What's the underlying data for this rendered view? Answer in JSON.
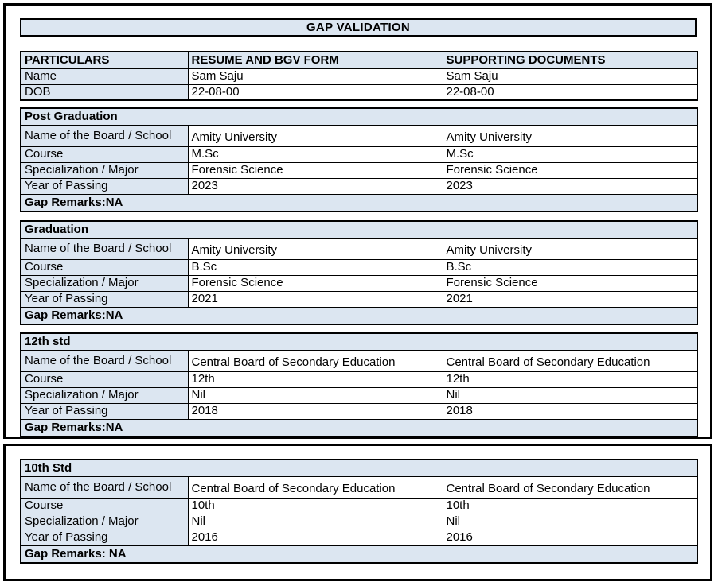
{
  "title": "GAP VALIDATION",
  "colors": {
    "fill": "#dce6f1",
    "border": "#000000"
  },
  "header_table": {
    "columns": {
      "particulars": "PARTICULARS",
      "resume": "RESUME AND BGV FORM",
      "supporting": "SUPPORTING DOCUMENTS"
    },
    "rows": [
      {
        "label": "Name",
        "resume": "Sam Saju",
        "supporting": "Sam Saju"
      },
      {
        "label": "DOB",
        "resume": "22-08-00",
        "supporting": "22-08-00"
      }
    ]
  },
  "sections": [
    {
      "title": "Post Graduation",
      "rows": [
        {
          "label": "Name of the Board / School",
          "resume": "Amity University",
          "supporting": "Amity University"
        },
        {
          "label": "Course",
          "resume": "M.Sc",
          "supporting": "M.Sc"
        },
        {
          "label": "Specialization / Major",
          "resume": "Forensic Science",
          "supporting": "Forensic Science"
        },
        {
          "label": "Year of Passing",
          "resume": "2023",
          "supporting": "2023"
        }
      ],
      "gap_remarks": "Gap Remarks:NA"
    },
    {
      "title": "Graduation",
      "rows": [
        {
          "label": "Name of the Board / School",
          "resume": "Amity University",
          "supporting": "Amity University"
        },
        {
          "label": "Course",
          "resume": "B.Sc",
          "supporting": "B.Sc"
        },
        {
          "label": "Specialization / Major",
          "resume": "Forensic Science",
          "supporting": "Forensic Science"
        },
        {
          "label": "Year of Passing",
          "resume": "2021",
          "supporting": "2021"
        }
      ],
      "gap_remarks": "Gap Remarks:NA"
    },
    {
      "title": "12th std",
      "rows": [
        {
          "label": "Name of the Board / School",
          "resume": "Central Board of Secondary Education",
          "supporting": "Central Board of Secondary Education"
        },
        {
          "label": "Course",
          "resume": "12th",
          "supporting": "12th"
        },
        {
          "label": "Specialization / Major",
          "resume": "Nil",
          "supporting": "Nil"
        },
        {
          "label": "Year of Passing",
          "resume": "2018",
          "supporting": "2018"
        }
      ],
      "gap_remarks": "Gap Remarks:NA"
    },
    {
      "title": "10th Std",
      "rows": [
        {
          "label": "Name of the Board / School",
          "resume": "Central Board of Secondary Education",
          "supporting": "Central Board of Secondary Education"
        },
        {
          "label": "Course",
          "resume": "10th",
          "supporting": "10th"
        },
        {
          "label": "Specialization / Major",
          "resume": "Nil",
          "supporting": "Nil"
        },
        {
          "label": "Year of Passing",
          "resume": "2016",
          "supporting": "2016"
        }
      ],
      "gap_remarks": "Gap Remarks: NA"
    }
  ]
}
